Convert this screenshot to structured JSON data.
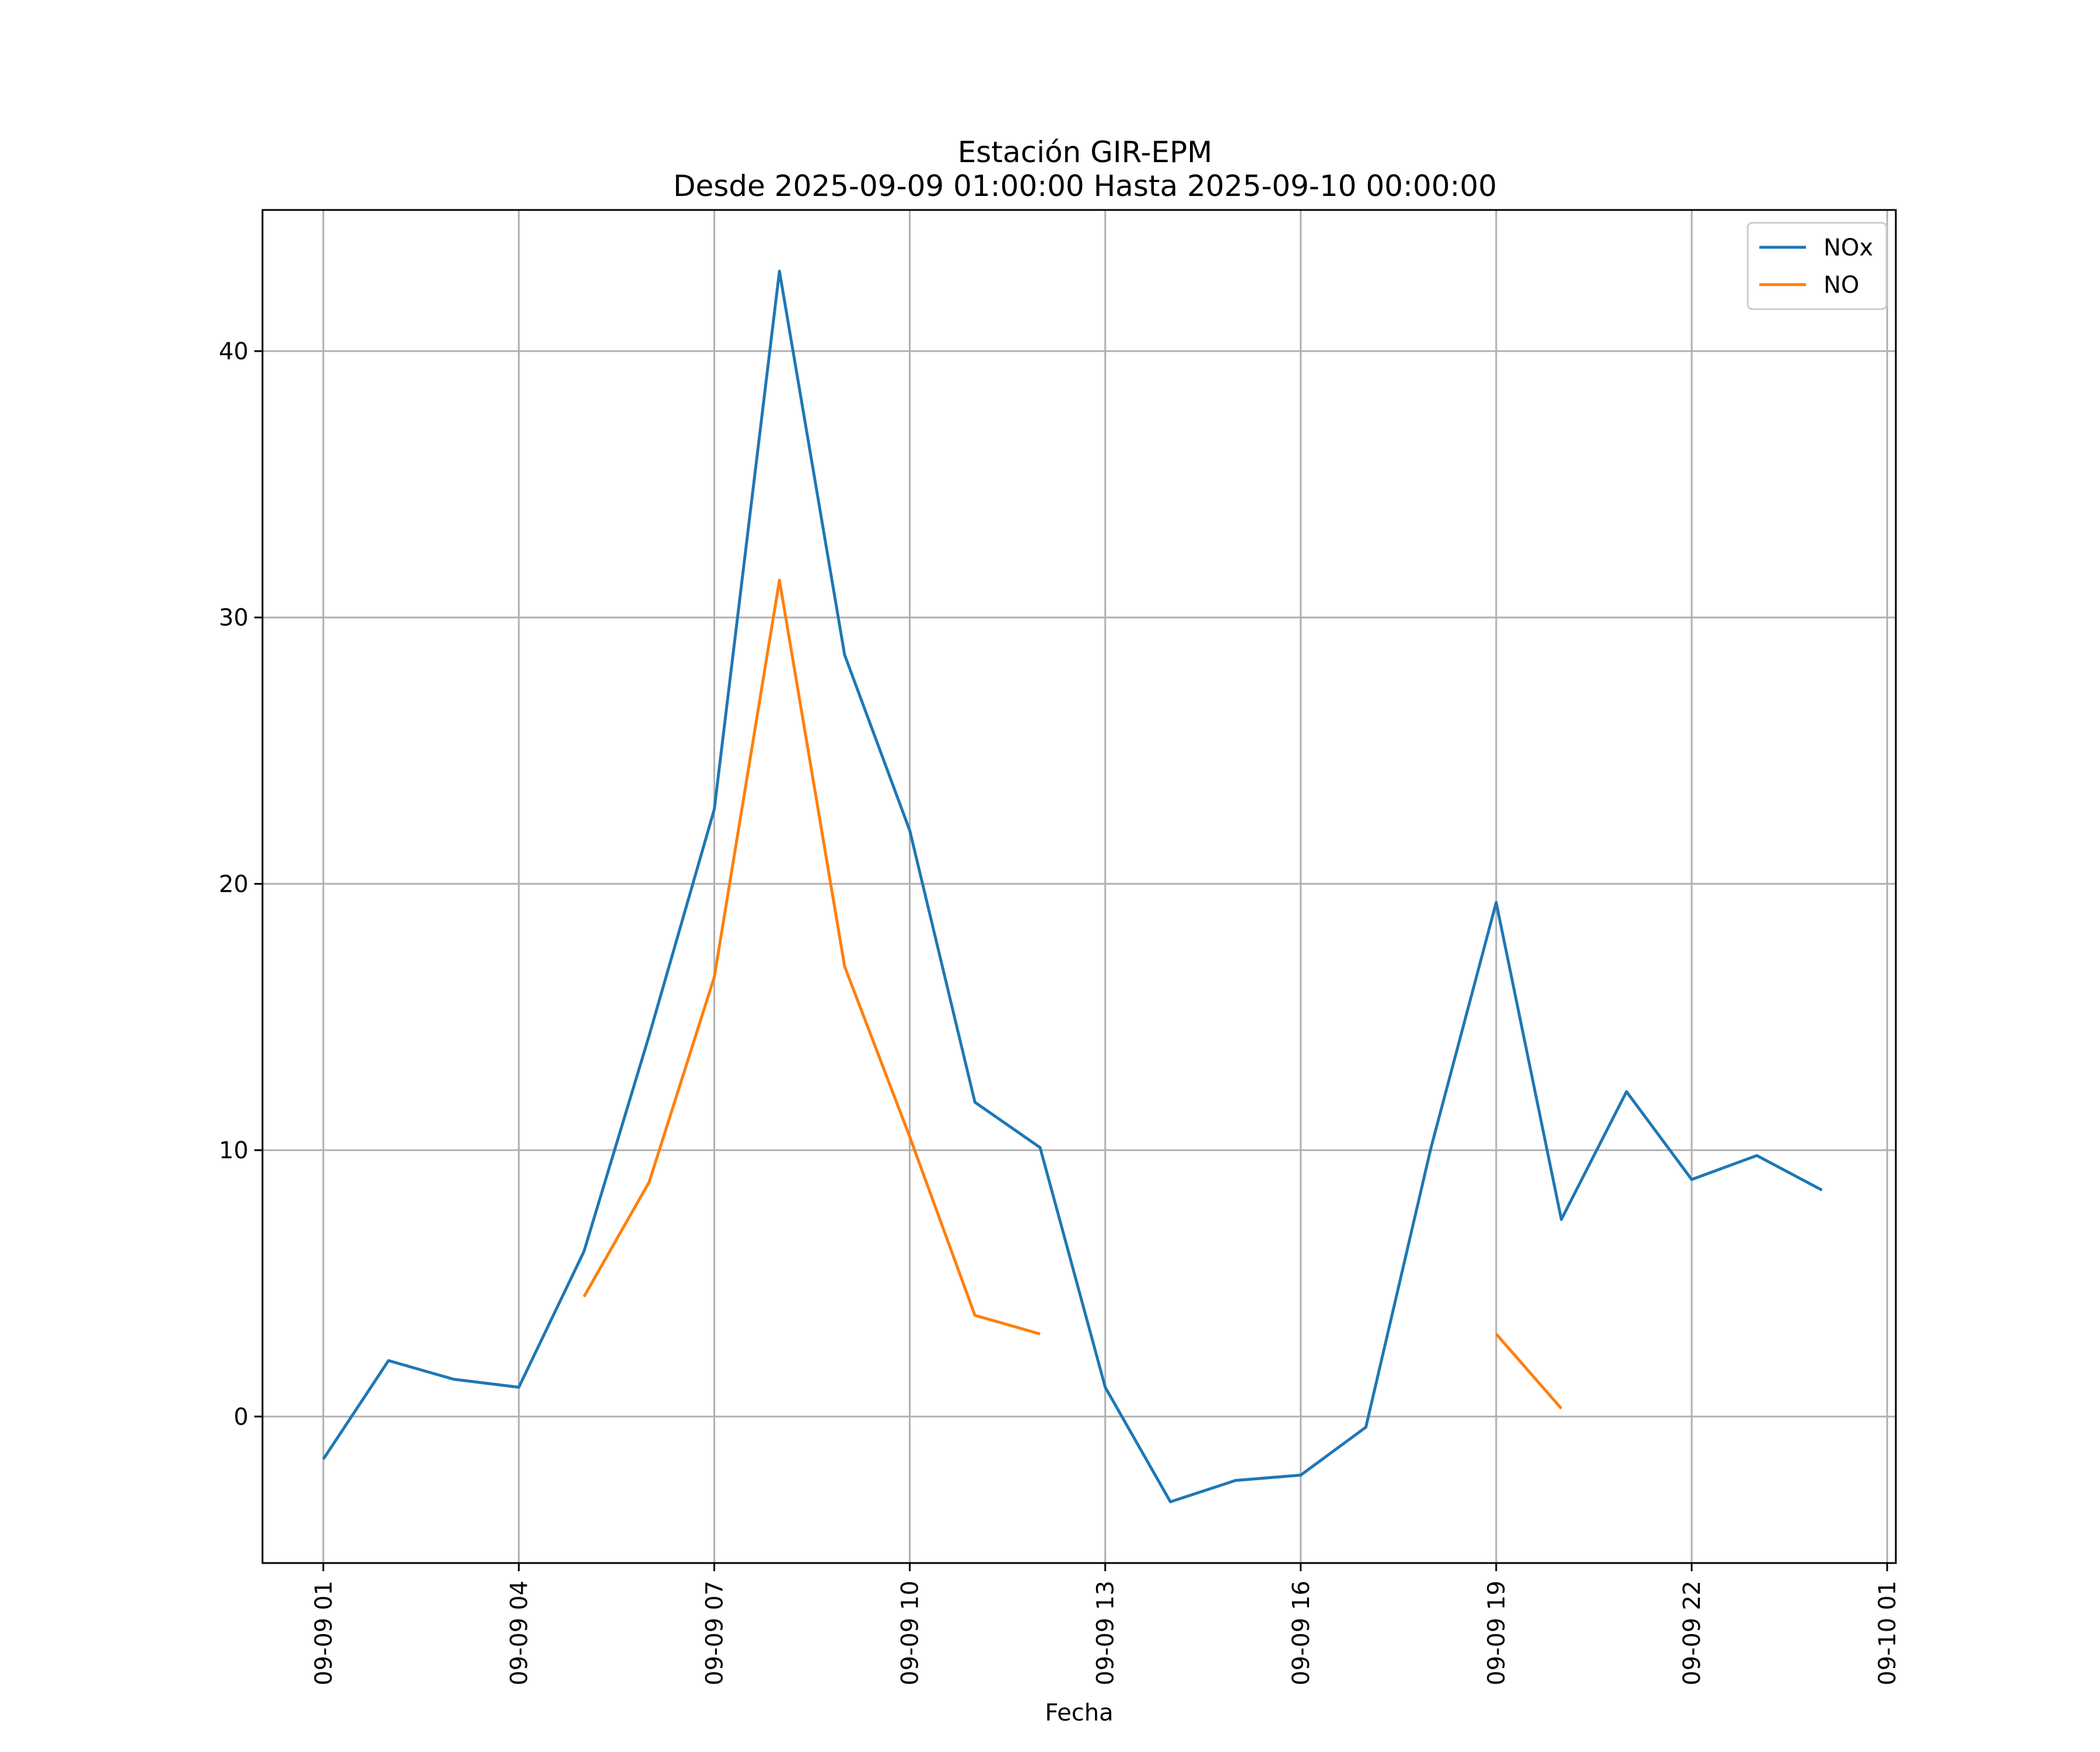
{
  "chart_data": {
    "type": "line",
    "title": "Estación GIR-EPM",
    "subtitle": "Desde 2025-09-09 01:00:00 Hasta 2025-09-10 00:00:00",
    "xlabel": "Fecha",
    "ylabel": "",
    "x_unit": "hour",
    "x_start": "2025-09-09 01:00",
    "xlim": [
      "2025-09-09 00:04",
      "2025-09-10 01:08"
    ],
    "ylim": [
      -5.5,
      45.3
    ],
    "grid": true,
    "legend_position": "top-right",
    "x_ticks": [
      {
        "x": "2025-09-09 01:00",
        "label": "09-09 01"
      },
      {
        "x": "2025-09-09 04:00",
        "label": "09-09 04"
      },
      {
        "x": "2025-09-09 07:00",
        "label": "09-09 07"
      },
      {
        "x": "2025-09-09 10:00",
        "label": "09-09 10"
      },
      {
        "x": "2025-09-09 13:00",
        "label": "09-09 13"
      },
      {
        "x": "2025-09-09 16:00",
        "label": "09-09 16"
      },
      {
        "x": "2025-09-09 19:00",
        "label": "09-09 19"
      },
      {
        "x": "2025-09-09 22:00",
        "label": "09-09 22"
      },
      {
        "x": "2025-09-10 01:00",
        "label": "09-10 01"
      }
    ],
    "y_ticks": [
      0,
      10,
      20,
      30,
      40
    ],
    "x": [
      "2025-09-09 01:00",
      "2025-09-09 02:00",
      "2025-09-09 03:00",
      "2025-09-09 04:00",
      "2025-09-09 05:00",
      "2025-09-09 06:00",
      "2025-09-09 07:00",
      "2025-09-09 08:00",
      "2025-09-09 09:00",
      "2025-09-09 10:00",
      "2025-09-09 11:00",
      "2025-09-09 12:00",
      "2025-09-09 13:00",
      "2025-09-09 14:00",
      "2025-09-09 15:00",
      "2025-09-09 16:00",
      "2025-09-09 17:00",
      "2025-09-09 18:00",
      "2025-09-09 19:00",
      "2025-09-09 20:00",
      "2025-09-09 21:00",
      "2025-09-09 22:00",
      "2025-09-09 23:00",
      "2025-09-10 00:00"
    ],
    "series": [
      {
        "name": "NOx",
        "color": "#1f77b4",
        "values": [
          -1.6,
          2.1,
          1.4,
          1.1,
          6.2,
          14.3,
          22.8,
          43.0,
          28.6,
          22.0,
          11.8,
          10.1,
          1.1,
          -3.2,
          -2.4,
          -2.2,
          -0.4,
          10.1,
          19.3,
          7.4,
          12.2,
          8.9,
          9.8,
          8.5
        ]
      },
      {
        "name": "NO",
        "color": "#ff7f0e",
        "values": [
          null,
          null,
          null,
          null,
          4.5,
          8.8,
          16.5,
          31.4,
          16.9,
          10.5,
          3.8,
          3.1,
          null,
          null,
          null,
          null,
          null,
          null,
          3.1,
          0.3,
          null,
          null,
          null,
          null
        ]
      }
    ]
  }
}
